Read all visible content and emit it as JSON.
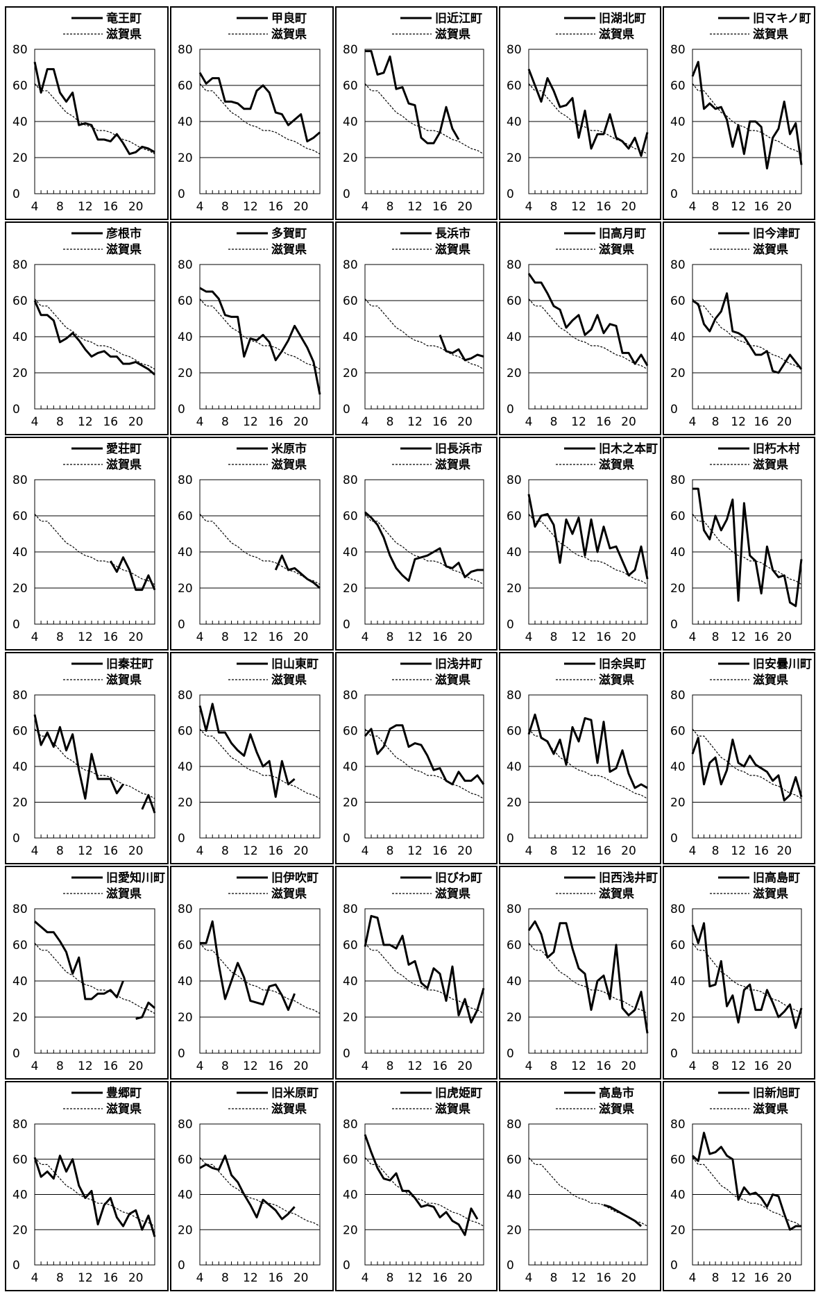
{
  "common": {
    "reference_name": "滋賀県",
    "yticks": [
      "0",
      "20",
      "40",
      "60",
      "80"
    ],
    "xticks": [
      "4",
      "8",
      "12",
      "16",
      "20"
    ],
    "xlim": [
      4,
      23
    ],
    "ylim": [
      0,
      80
    ],
    "reference_values": [
      61,
      57,
      57,
      53,
      49,
      45,
      43,
      40,
      38,
      37,
      35,
      35,
      34,
      32,
      30,
      29,
      27,
      25,
      24,
      22
    ]
  },
  "chart_data": [
    {
      "type": "line",
      "title": "竜王町",
      "x_start": 4,
      "series": [
        {
          "name": "竜王町",
          "values": [
            73,
            56,
            69,
            69,
            56,
            51,
            56,
            38,
            39,
            38,
            30,
            30,
            29,
            33,
            28,
            22,
            23,
            26,
            25,
            23
          ]
        },
        {
          "name": "滋賀県",
          "reference": true
        }
      ]
    },
    {
      "type": "line",
      "title": "甲良町",
      "x_start": 4,
      "series": [
        {
          "name": "甲良町",
          "values": [
            67,
            61,
            64,
            64,
            51,
            51,
            50,
            47,
            47,
            57,
            60,
            56,
            45,
            44,
            38,
            41,
            44,
            29,
            31,
            34
          ]
        },
        {
          "name": "滋賀県",
          "reference": true
        }
      ]
    },
    {
      "type": "line",
      "title": "旧近江町",
      "x_start": 4,
      "series": [
        {
          "name": "旧近江町",
          "values": [
            79,
            79,
            66,
            67,
            76,
            58,
            59,
            50,
            49,
            31,
            28,
            28,
            34,
            48,
            36,
            30,
            null,
            null,
            null,
            null
          ]
        },
        {
          "name": "滋賀県",
          "reference": true
        }
      ]
    },
    {
      "type": "line",
      "title": "旧湖北町",
      "x_start": 4,
      "series": [
        {
          "name": "旧湖北町",
          "values": [
            69,
            60,
            51,
            64,
            57,
            48,
            49,
            53,
            31,
            46,
            25,
            33,
            33,
            44,
            31,
            29,
            25,
            31,
            21,
            34
          ]
        },
        {
          "name": "滋賀県",
          "reference": true
        }
      ]
    },
    {
      "type": "line",
      "title": "旧マキノ町",
      "x_start": 4,
      "series": [
        {
          "name": "旧マキノ町",
          "values": [
            65,
            73,
            47,
            50,
            47,
            48,
            41,
            26,
            38,
            22,
            40,
            40,
            37,
            14,
            31,
            36,
            51,
            33,
            39,
            16
          ]
        },
        {
          "name": "滋賀県",
          "reference": true
        }
      ]
    },
    {
      "type": "line",
      "title": "彦根市",
      "x_start": 4,
      "series": [
        {
          "name": "彦根市",
          "values": [
            60,
            52,
            52,
            49,
            37,
            39,
            42,
            38,
            33,
            29,
            31,
            32,
            29,
            29,
            25,
            25,
            26,
            24,
            22,
            19
          ]
        },
        {
          "name": "滋賀県",
          "reference": true
        }
      ]
    },
    {
      "type": "line",
      "title": "多賀町",
      "x_start": 4,
      "series": [
        {
          "name": "多賀町",
          "values": [
            67,
            65,
            65,
            61,
            52,
            51,
            51,
            29,
            39,
            38,
            41,
            37,
            27,
            32,
            38,
            46,
            40,
            34,
            26,
            8
          ]
        },
        {
          "name": "滋賀県",
          "reference": true
        }
      ]
    },
    {
      "type": "line",
      "title": "長浜市",
      "x_start": 4,
      "series": [
        {
          "name": "長浜市",
          "values": [
            null,
            null,
            null,
            null,
            null,
            null,
            null,
            null,
            null,
            null,
            null,
            null,
            41,
            32,
            31,
            33,
            27,
            28,
            30,
            29
          ]
        },
        {
          "name": "滋賀県",
          "reference": true
        }
      ]
    },
    {
      "type": "line",
      "title": "旧高月町",
      "x_start": 4,
      "series": [
        {
          "name": "旧高月町",
          "values": [
            75,
            70,
            70,
            64,
            57,
            55,
            45,
            49,
            52,
            41,
            44,
            52,
            42,
            47,
            46,
            31,
            31,
            25,
            30,
            24
          ]
        },
        {
          "name": "滋賀県",
          "reference": true
        }
      ]
    },
    {
      "type": "line",
      "title": "旧今津町",
      "x_start": 4,
      "series": [
        {
          "name": "旧今津町",
          "values": [
            60,
            58,
            47,
            43,
            50,
            54,
            64,
            43,
            42,
            40,
            35,
            30,
            30,
            32,
            21,
            20,
            25,
            30,
            26,
            22
          ]
        },
        {
          "name": "滋賀県",
          "reference": true
        }
      ]
    },
    {
      "type": "line",
      "title": "愛荘町",
      "x_start": 4,
      "series": [
        {
          "name": "愛荘町",
          "values": [
            null,
            null,
            null,
            null,
            null,
            null,
            null,
            null,
            null,
            null,
            null,
            null,
            35,
            29,
            37,
            30,
            19,
            19,
            27,
            19
          ]
        },
        {
          "name": "滋賀県",
          "reference": true
        }
      ]
    },
    {
      "type": "line",
      "title": "米原市",
      "x_start": 4,
      "series": [
        {
          "name": "米原市",
          "values": [
            null,
            null,
            null,
            null,
            null,
            null,
            null,
            null,
            null,
            null,
            null,
            null,
            30,
            38,
            30,
            31,
            28,
            25,
            23,
            20
          ]
        },
        {
          "name": "滋賀県",
          "reference": true
        }
      ]
    },
    {
      "type": "line",
      "title": "旧長浜市",
      "x_start": 4,
      "series": [
        {
          "name": "旧長浜市",
          "values": [
            62,
            59,
            55,
            48,
            38,
            31,
            27,
            24,
            36,
            37,
            38,
            40,
            42,
            32,
            31,
            34,
            26,
            29,
            30,
            30
          ]
        },
        {
          "name": "滋賀県",
          "reference": true
        }
      ]
    },
    {
      "type": "line",
      "title": "旧木之本町",
      "x_start": 4,
      "series": [
        {
          "name": "旧木之本町",
          "values": [
            72,
            54,
            60,
            61,
            55,
            34,
            58,
            50,
            59,
            38,
            58,
            40,
            54,
            42,
            43,
            35,
            27,
            30,
            43,
            25
          ]
        },
        {
          "name": "滋賀県",
          "reference": true
        }
      ]
    },
    {
      "type": "line",
      "title": "旧朽木村",
      "x_start": 4,
      "series": [
        {
          "name": "旧朽木村",
          "values": [
            75,
            75,
            52,
            47,
            60,
            52,
            58,
            69,
            13,
            67,
            38,
            35,
            17,
            43,
            30,
            26,
            27,
            12,
            10,
            36
          ]
        },
        {
          "name": "滋賀県",
          "reference": true
        }
      ]
    },
    {
      "type": "line",
      "title": "旧秦荘町",
      "x_start": 4,
      "series": [
        {
          "name": "旧秦荘町",
          "values": [
            69,
            52,
            59,
            51,
            62,
            49,
            58,
            38,
            22,
            47,
            33,
            33,
            33,
            25,
            30,
            null,
            null,
            16,
            24,
            14
          ]
        },
        {
          "name": "滋賀県",
          "reference": true
        }
      ]
    },
    {
      "type": "line",
      "title": "旧山東町",
      "x_start": 4,
      "series": [
        {
          "name": "旧山東町",
          "values": [
            74,
            60,
            75,
            59,
            59,
            53,
            49,
            46,
            58,
            48,
            40,
            43,
            23,
            43,
            30,
            33,
            null,
            null,
            null,
            null
          ]
        },
        {
          "name": "滋賀県",
          "reference": true
        }
      ]
    },
    {
      "type": "line",
      "title": "旧浅井町",
      "x_start": 4,
      "series": [
        {
          "name": "旧浅井町",
          "values": [
            57,
            61,
            47,
            51,
            61,
            63,
            63,
            51,
            53,
            52,
            46,
            38,
            39,
            32,
            30,
            37,
            32,
            32,
            35,
            30
          ]
        },
        {
          "name": "滋賀県",
          "reference": true
        }
      ]
    },
    {
      "type": "line",
      "title": "旧余呉町",
      "x_start": 4,
      "series": [
        {
          "name": "旧余呉町",
          "values": [
            58,
            69,
            56,
            54,
            47,
            55,
            41,
            62,
            54,
            67,
            66,
            42,
            65,
            37,
            39,
            49,
            36,
            28,
            30,
            28
          ]
        },
        {
          "name": "滋賀県",
          "reference": true
        }
      ]
    },
    {
      "type": "line",
      "title": "旧安曇川町",
      "x_start": 4,
      "series": [
        {
          "name": "旧安曇川町",
          "values": [
            47,
            56,
            30,
            42,
            45,
            30,
            38,
            55,
            42,
            40,
            46,
            41,
            39,
            37,
            32,
            35,
            21,
            24,
            34,
            23
          ]
        },
        {
          "name": "滋賀県",
          "reference": true
        }
      ]
    },
    {
      "type": "line",
      "title": "旧愛知川町",
      "x_start": 4,
      "series": [
        {
          "name": "旧愛知川町",
          "values": [
            73,
            70,
            67,
            67,
            62,
            56,
            44,
            53,
            30,
            30,
            33,
            33,
            35,
            31,
            40,
            null,
            19,
            20,
            28,
            25
          ]
        },
        {
          "name": "滋賀県",
          "reference": true
        }
      ]
    },
    {
      "type": "line",
      "title": "旧伊吹町",
      "x_start": 4,
      "series": [
        {
          "name": "旧伊吹町",
          "values": [
            61,
            61,
            73,
            49,
            30,
            40,
            50,
            42,
            29,
            28,
            27,
            37,
            38,
            32,
            24,
            33,
            null,
            null,
            null,
            null
          ]
        },
        {
          "name": "滋賀県",
          "reference": true
        }
      ]
    },
    {
      "type": "line",
      "title": "旧びわ町",
      "x_start": 4,
      "series": [
        {
          "name": "旧びわ町",
          "values": [
            59,
            76,
            75,
            60,
            60,
            58,
            65,
            49,
            51,
            39,
            36,
            47,
            44,
            29,
            48,
            21,
            30,
            17,
            24,
            36
          ]
        },
        {
          "name": "滋賀県",
          "reference": true
        }
      ]
    },
    {
      "type": "line",
      "title": "旧西浅井町",
      "x_start": 4,
      "series": [
        {
          "name": "旧西浅井町",
          "values": [
            68,
            73,
            66,
            53,
            56,
            72,
            72,
            58,
            47,
            44,
            24,
            40,
            43,
            30,
            60,
            25,
            21,
            24,
            34,
            11
          ]
        },
        {
          "name": "滋賀県",
          "reference": true
        }
      ]
    },
    {
      "type": "line",
      "title": "旧高島町",
      "x_start": 4,
      "series": [
        {
          "name": "旧高島町",
          "values": [
            71,
            61,
            72,
            37,
            38,
            51,
            26,
            32,
            17,
            35,
            38,
            24,
            24,
            35,
            28,
            20,
            23,
            27,
            14,
            25
          ]
        },
        {
          "name": "滋賀県",
          "reference": true
        }
      ]
    },
    {
      "type": "line",
      "title": "豊郷町",
      "x_start": 4,
      "series": [
        {
          "name": "豊郷町",
          "values": [
            61,
            50,
            53,
            49,
            62,
            53,
            60,
            45,
            38,
            42,
            23,
            34,
            38,
            27,
            22,
            29,
            31,
            20,
            28,
            16
          ]
        },
        {
          "name": "滋賀県",
          "reference": true
        }
      ]
    },
    {
      "type": "line",
      "title": "旧米原町",
      "x_start": 4,
      "series": [
        {
          "name": "旧米原町",
          "values": [
            55,
            57,
            55,
            54,
            62,
            51,
            47,
            40,
            34,
            27,
            37,
            34,
            31,
            26,
            29,
            33,
            null,
            null,
            null,
            null
          ]
        },
        {
          "name": "滋賀県",
          "reference": true
        }
      ]
    },
    {
      "type": "line",
      "title": "旧虎姫町",
      "x_start": 4,
      "series": [
        {
          "name": "旧虎姫町",
          "values": [
            74,
            64,
            55,
            49,
            48,
            52,
            42,
            42,
            38,
            33,
            34,
            33,
            27,
            30,
            25,
            23,
            17,
            32,
            26,
            null
          ]
        },
        {
          "name": "滋賀県",
          "reference": true
        }
      ]
    },
    {
      "type": "line",
      "title": "高島市",
      "x_start": 4,
      "series": [
        {
          "name": "高島市",
          "values": [
            null,
            null,
            null,
            null,
            null,
            null,
            null,
            null,
            null,
            null,
            null,
            null,
            34,
            33,
            31,
            29,
            27,
            25,
            22,
            null
          ]
        },
        {
          "name": "滋賀県",
          "reference": true
        }
      ]
    },
    {
      "type": "line",
      "title": "旧新旭町",
      "x_start": 4,
      "series": [
        {
          "name": "旧新旭町",
          "values": [
            62,
            59,
            75,
            63,
            64,
            67,
            62,
            60,
            37,
            44,
            40,
            41,
            38,
            33,
            40,
            39,
            29,
            20,
            22,
            22
          ]
        },
        {
          "name": "滋賀県",
          "reference": true
        }
      ]
    }
  ]
}
